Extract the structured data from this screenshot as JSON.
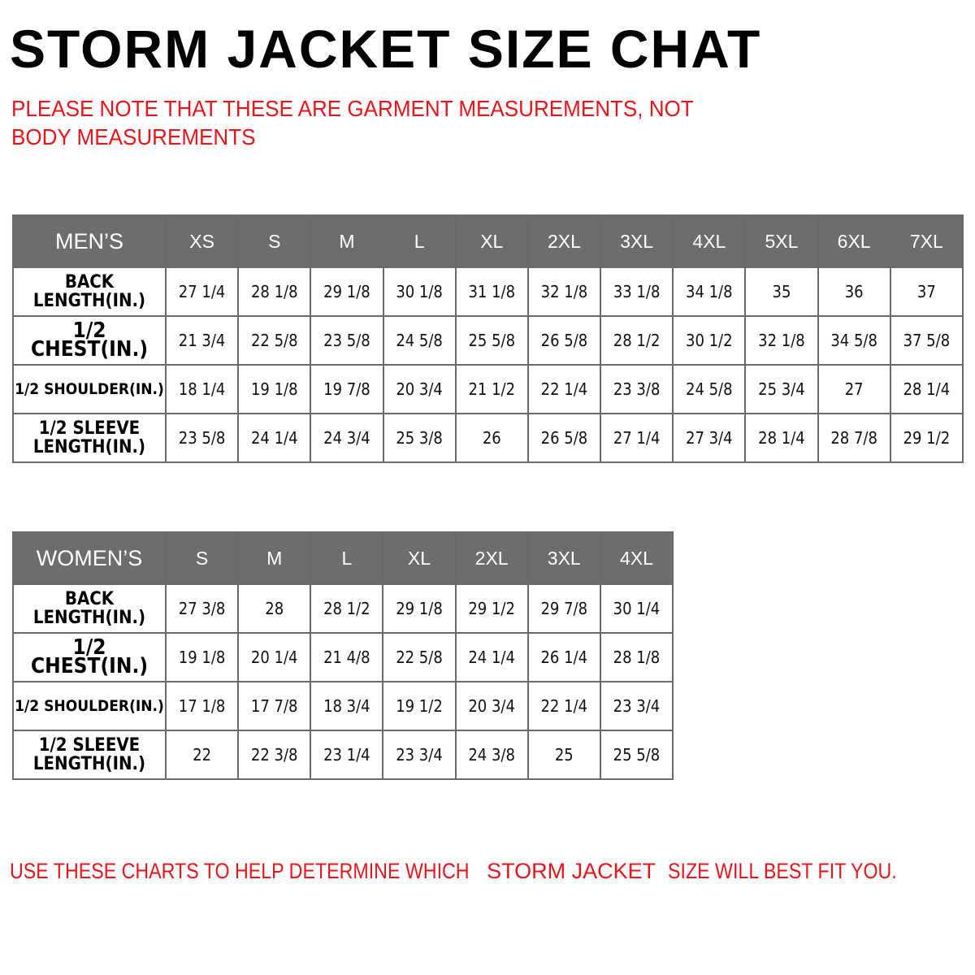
{
  "title": "STORM JACKET SIZE CHAT",
  "note": "PLEASE NOTE THAT THESE ARE GARMENT MEASUREMENTS, NOT BODY MEASUREMENTS",
  "colors": {
    "header_bg": "#6d6d6d",
    "accent_red": "#e8141b"
  },
  "mens": {
    "label": "MEN’S",
    "sizes": [
      "XS",
      "S",
      "M",
      "L",
      "XL",
      "2XL",
      "3XL",
      "4XL",
      "5XL",
      "6XL",
      "7XL"
    ],
    "rows": [
      {
        "label": "BACK LENGTH(IN.)",
        "values": [
          "27 1/4",
          "28 1/8",
          "29 1/8",
          "30 1/8",
          "31 1/8",
          "32 1/8",
          "33 1/8",
          "34 1/8",
          "35",
          "36",
          "37"
        ]
      },
      {
        "label": "1/2 CHEST(IN.)",
        "values": [
          "21 3/4",
          "22 5/8",
          "23 5/8",
          "24 5/8",
          "25 5/8",
          "26 5/8",
          "28 1/2",
          "30 1/2",
          "32 1/8",
          "34 5/8",
          "37 5/8"
        ]
      },
      {
        "label": "1/2 SHOULDER(IN.)",
        "values": [
          "18 1/4",
          "19 1/8",
          "19 7/8",
          "20 3/4",
          "21 1/2",
          "22 1/4",
          "23 3/8",
          "24 5/8",
          "25 3/4",
          "27",
          "28 1/4"
        ]
      },
      {
        "label": "1/2 SLEEVE LENGTH(IN.)",
        "values": [
          "23 5/8",
          "24 1/4",
          "24 3/4",
          "25 3/8",
          "26",
          "26 5/8",
          "27 1/4",
          "27 3/4",
          "28 1/4",
          "28 7/8",
          "29 1/2"
        ]
      }
    ]
  },
  "womens": {
    "label": "WOMEN’S",
    "sizes": [
      "S",
      "M",
      "L",
      "XL",
      "2XL",
      "3XL",
      "4XL"
    ],
    "rows": [
      {
        "label": "BACK LENGTH(IN.)",
        "values": [
          "27 3/8",
          "28",
          "28 1/2",
          "29 1/8",
          "29 1/2",
          "29 7/8",
          "30 1/4"
        ]
      },
      {
        "label": "1/2 CHEST(IN.)",
        "values": [
          "19 1/8",
          "20 1/4",
          "21 4/8",
          "22 5/8",
          "24 1/4",
          "26 1/4",
          "28 1/8"
        ]
      },
      {
        "label": "1/2 SHOULDER(IN.)",
        "values": [
          "17 1/8",
          "17 7/8",
          "18 3/4",
          "19 1/2",
          "20 3/4",
          "22 1/4",
          "23 3/4"
        ]
      },
      {
        "label": "1/2 SLEEVE LENGTH(IN.)",
        "values": [
          "22",
          "22 3/8",
          "23 1/4",
          "23 3/4",
          "24 3/8",
          "25",
          "25 5/8"
        ]
      }
    ]
  },
  "footer": {
    "part1": "USE THESE CHARTS TO HELP DETERMINE WHICH",
    "part2": "STORM JACKET",
    "part3": "SIZE WILL BEST FIT YOU."
  }
}
